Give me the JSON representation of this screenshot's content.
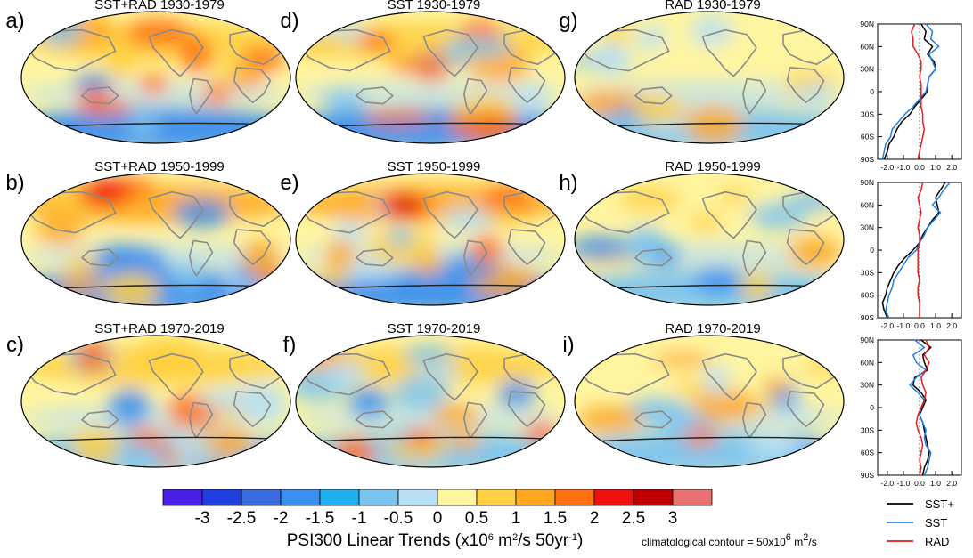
{
  "chart_data": {
    "type": "heatmap",
    "maps": [
      {
        "letter": "a)",
        "title": "SST+RAD 1930-1979"
      },
      {
        "letter": "d)",
        "title": "SST 1930-1979"
      },
      {
        "letter": "g)",
        "title": "RAD 1930-1979"
      },
      {
        "letter": "b)",
        "title": "SST+RAD 1950-1999"
      },
      {
        "letter": "e)",
        "title": "SST 1950-1999"
      },
      {
        "letter": "h)",
        "title": "RAD 1950-1999"
      },
      {
        "letter": "c)",
        "title": "SST+RAD 1970-2019"
      },
      {
        "letter": "f)",
        "title": "SST 1970-2019"
      },
      {
        "letter": "i)",
        "title": "RAD 1970-2019"
      }
    ],
    "colorbar": {
      "colors": [
        "#4a1fe8",
        "#1f3fe0",
        "#3a6be0",
        "#3a8ff0",
        "#1fb0f0",
        "#7cc4f0",
        "#b8e0f5",
        "#fff5a0",
        "#ffd040",
        "#ffa820",
        "#ff7010",
        "#f01010",
        "#c00000",
        "#e87070"
      ],
      "labels": [
        "-3",
        "-2.5",
        "-2",
        "-1.5",
        "-1",
        "-0.5",
        "0",
        "0.5",
        "1",
        "1.5",
        "2",
        "2.5",
        "3"
      ],
      "title_text": "PSI300 Linear Trends (x10",
      "title_sup1": "6",
      "title_mid": " m",
      "title_sup2": "2",
      "title_mid2": "/s 50yr",
      "title_sup3": "-1",
      "title_end": ")"
    },
    "note": {
      "text": "climatological contour = 50x10",
      "sup1": "6",
      "mid": " m",
      "sup2": "2",
      "end": "/s"
    },
    "profiles": {
      "ylabels": [
        "90N",
        "60N",
        "30N",
        "0",
        "30S",
        "60S",
        "90S"
      ],
      "latitudes": [
        90,
        60,
        30,
        0,
        -30,
        -60,
        -90
      ],
      "xlabels": [
        "-2.0",
        "-1.0",
        "0.0",
        "1.0",
        "2.0"
      ],
      "xticks": [
        -2,
        -1,
        0,
        1,
        2
      ],
      "xlim": [
        -2.6,
        2.6
      ],
      "panels": [
        {
          "series": [
            {
              "name": "SST+",
              "color": "#000000",
              "lat": [
                90,
                80,
                70,
                60,
                50,
                40,
                30,
                20,
                10,
                0,
                -10,
                -20,
                -30,
                -40,
                -50,
                -60,
                -70,
                -80,
                -90
              ],
              "values": [
                0.1,
                0.4,
                0.3,
                0.8,
                0.5,
                0.9,
                1.0,
                0.6,
                0.5,
                0.5,
                0.1,
                -0.3,
                -0.6,
                -1.1,
                -1.4,
                -1.6,
                -1.9,
                -2.0,
                -2.2
              ]
            },
            {
              "name": "SST",
              "color": "#1f7fe0",
              "lat": [
                90,
                80,
                70,
                60,
                50,
                40,
                30,
                20,
                10,
                0,
                -10,
                -20,
                -30,
                -40,
                -50,
                -60,
                -70,
                -80,
                -90
              ],
              "values": [
                0.4,
                0.8,
                0.7,
                1.2,
                0.6,
                0.8,
                1.0,
                0.6,
                0.5,
                0.4,
                0.0,
                -0.4,
                -0.9,
                -1.3,
                -1.7,
                -1.8,
                -2.1,
                -2.2,
                -2.3
              ]
            },
            {
              "name": "RAD",
              "color": "#e02020",
              "lat": [
                90,
                80,
                70,
                60,
                50,
                40,
                30,
                20,
                10,
                0,
                -10,
                -20,
                -30,
                -40,
                -50,
                -60,
                -70,
                -80,
                -90
              ],
              "values": [
                -0.3,
                -0.5,
                -0.4,
                -0.4,
                -0.1,
                0.1,
                0.1,
                0.0,
                0.1,
                0.1,
                0.1,
                0.1,
                0.2,
                0.2,
                0.3,
                0.2,
                0.1,
                0.0,
                -0.1
              ]
            }
          ]
        },
        {
          "series": [
            {
              "name": "SST+",
              "color": "#000000",
              "lat": [
                90,
                80,
                70,
                60,
                50,
                40,
                30,
                20,
                10,
                0,
                -10,
                -20,
                -30,
                -40,
                -50,
                -60,
                -70,
                -80,
                -90
              ],
              "values": [
                1.6,
                1.3,
                1.0,
                1.1,
                1.2,
                0.8,
                0.5,
                0.2,
                0.0,
                -0.4,
                -0.9,
                -1.3,
                -1.6,
                -1.8,
                -2.0,
                -2.1,
                -2.3,
                -2.2,
                -2.0
              ]
            },
            {
              "name": "SST",
              "color": "#1f7fe0",
              "lat": [
                90,
                80,
                70,
                60,
                50,
                40,
                30,
                20,
                10,
                0,
                -10,
                -20,
                -30,
                -40,
                -50,
                -60,
                -70,
                -80,
                -90
              ],
              "values": [
                1.9,
                1.5,
                1.2,
                0.8,
                1.3,
                0.9,
                0.5,
                0.3,
                0.0,
                -0.2,
                -0.7,
                -1.0,
                -1.3,
                -1.6,
                -1.7,
                -1.9,
                -2.0,
                -2.1,
                -1.9
              ]
            },
            {
              "name": "RAD",
              "color": "#e02020",
              "lat": [
                90,
                80,
                70,
                60,
                50,
                40,
                30,
                20,
                10,
                0,
                -10,
                -20,
                -30,
                -40,
                -50,
                -60,
                -70,
                -80,
                -90
              ],
              "values": [
                0.2,
                0.1,
                -0.1,
                0.0,
                0.1,
                0.0,
                -0.1,
                0.0,
                0.0,
                -0.1,
                -0.1,
                -0.1,
                -0.1,
                0.0,
                -0.1,
                -0.1,
                0.0,
                0.0,
                0.0
              ]
            }
          ]
        },
        {
          "series": [
            {
              "name": "SST+",
              "color": "#000000",
              "lat": [
                90,
                80,
                70,
                60,
                50,
                40,
                30,
                20,
                10,
                0,
                -10,
                -20,
                -30,
                -40,
                -50,
                -60,
                -70,
                -80,
                -90
              ],
              "values": [
                0.1,
                0.7,
                0.2,
                0.3,
                0.5,
                -0.3,
                -0.4,
                0.1,
                0.4,
                0.2,
                0.0,
                0.2,
                0.3,
                0.4,
                0.5,
                0.6,
                0.5,
                0.3,
                0.2
              ]
            },
            {
              "name": "SST",
              "color": "#1f7fe0",
              "lat": [
                90,
                80,
                70,
                60,
                50,
                40,
                30,
                20,
                10,
                0,
                -10,
                -20,
                -30,
                -40,
                -50,
                -60,
                -70,
                -80,
                -90
              ],
              "values": [
                -0.3,
                0.3,
                -0.4,
                -0.2,
                0.4,
                -0.2,
                -0.6,
                -0.1,
                0.3,
                0.1,
                0.0,
                0.2,
                0.4,
                0.3,
                0.4,
                0.7,
                0.6,
                0.5,
                0.3
              ]
            },
            {
              "name": "RAD",
              "color": "#e02020",
              "lat": [
                90,
                80,
                70,
                60,
                50,
                40,
                30,
                20,
                10,
                0,
                -10,
                -20,
                -30,
                -40,
                -50,
                -60,
                -70,
                -80,
                -90
              ],
              "values": [
                0.4,
                0.6,
                0.3,
                0.6,
                0.4,
                0.1,
                0.2,
                0.4,
                0.3,
                0.1,
                -0.1,
                -0.2,
                -0.1,
                0.1,
                0.2,
                0.1,
                0.0,
                0.1,
                0.0
              ]
            }
          ]
        }
      ],
      "legend": [
        {
          "label": "SST+",
          "color": "#000000"
        },
        {
          "label": "SST",
          "color": "#1f7fe0"
        },
        {
          "label": "RAD",
          "color": "#e02020"
        }
      ]
    }
  }
}
